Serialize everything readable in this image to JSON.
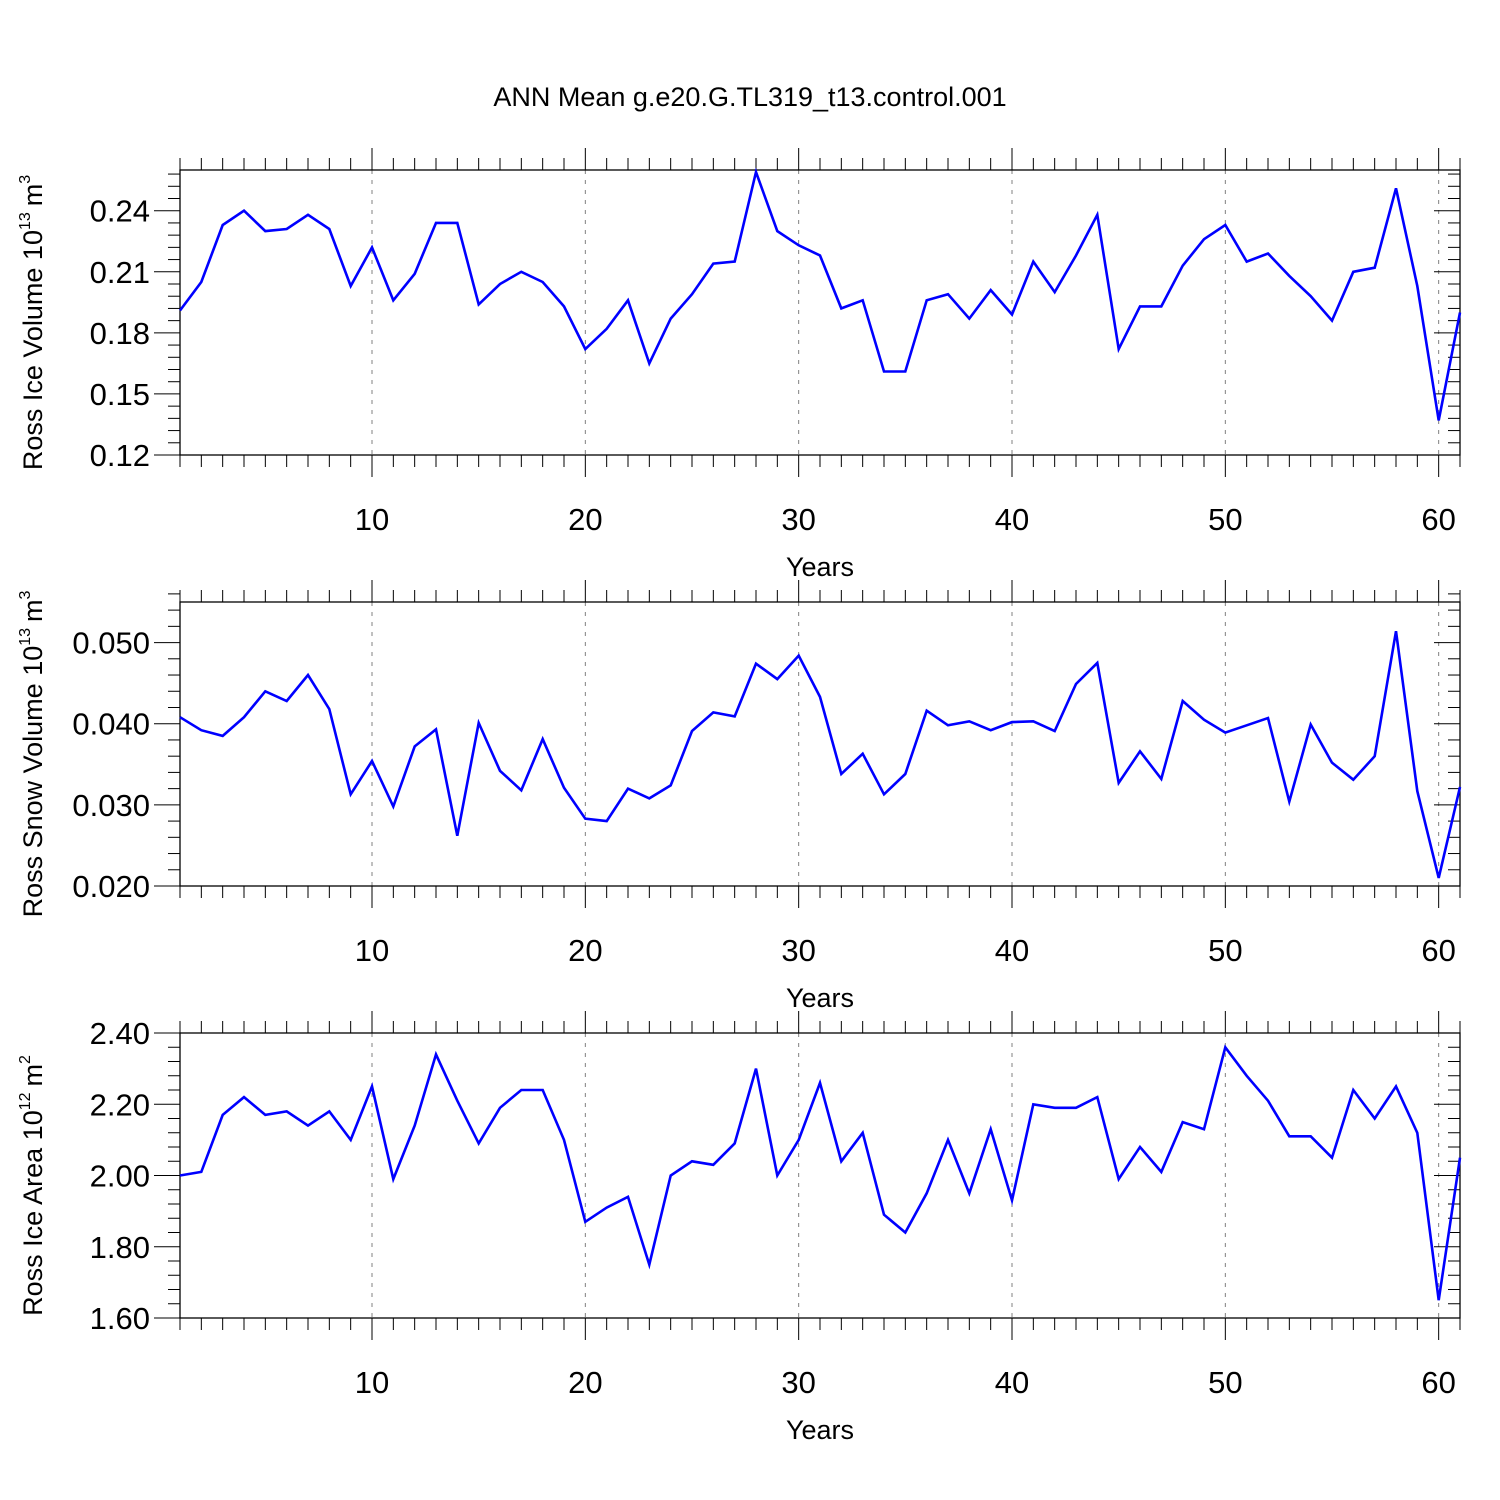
{
  "chart_data": {
    "type": "line",
    "title": "ANN Mean g.e20.G.TL319_t13.control.001",
    "series_color": "#0000ff",
    "gridline_color": "#808080",
    "panels": [
      {
        "name": "ross-ice-volume",
        "ylabel": "Ross Ice Volume 10",
        "ylabel_exp": "13",
        "ylabel_unit": "m",
        "ylabel_unit_exp": "3",
        "xlabel": "Years",
        "xlim": [
          1,
          61
        ],
        "ylim": [
          0.12,
          0.26
        ],
        "yticks": [
          0.12,
          0.15,
          0.18,
          0.21,
          0.24
        ],
        "ytick_labels": [
          "0.12",
          "0.15",
          "0.18",
          "0.21",
          "0.24"
        ],
        "xticks": [
          10,
          20,
          30,
          40,
          50,
          60
        ],
        "xtick_labels": [
          "10",
          "20",
          "30",
          "40",
          "50",
          "60"
        ],
        "x": [
          1,
          2,
          3,
          4,
          5,
          6,
          7,
          8,
          9,
          10,
          11,
          12,
          13,
          14,
          15,
          16,
          17,
          18,
          19,
          20,
          21,
          22,
          23,
          24,
          25,
          26,
          27,
          28,
          29,
          30,
          31,
          32,
          33,
          34,
          35,
          36,
          37,
          38,
          39,
          40,
          41,
          42,
          43,
          44,
          45,
          46,
          47,
          48,
          49,
          50,
          51,
          52,
          53,
          54,
          55,
          56,
          57,
          58,
          59,
          60,
          61
        ],
        "values": [
          0.191,
          0.205,
          0.233,
          0.24,
          0.23,
          0.231,
          0.238,
          0.231,
          0.203,
          0.222,
          0.196,
          0.209,
          0.234,
          0.234,
          0.194,
          0.204,
          0.21,
          0.205,
          0.193,
          0.172,
          0.182,
          0.196,
          0.165,
          0.187,
          0.199,
          0.214,
          0.215,
          0.259,
          0.23,
          0.223,
          0.218,
          0.192,
          0.196,
          0.161,
          0.161,
          0.196,
          0.199,
          0.187,
          0.201,
          0.189,
          0.215,
          0.2,
          0.218,
          0.238,
          0.172,
          0.193,
          0.193,
          0.213,
          0.226,
          0.233,
          0.215,
          0.219,
          0.208,
          0.198,
          0.186,
          0.21,
          0.212,
          0.251,
          0.203,
          0.137,
          0.19
        ]
      },
      {
        "name": "ross-snow-volume",
        "ylabel": "Ross Snow Volume 10",
        "ylabel_exp": "13",
        "ylabel_unit": "m",
        "ylabel_unit_exp": "3",
        "xlabel": "Years",
        "xlim": [
          1,
          61
        ],
        "ylim": [
          0.02,
          0.055
        ],
        "yticks": [
          0.02,
          0.03,
          0.04,
          0.05
        ],
        "ytick_labels": [
          "0.020",
          "0.030",
          "0.040",
          "0.050"
        ],
        "xticks": [
          10,
          20,
          30,
          40,
          50,
          60
        ],
        "xtick_labels": [
          "10",
          "20",
          "30",
          "40",
          "50",
          "60"
        ],
        "x": [
          1,
          2,
          3,
          4,
          5,
          6,
          7,
          8,
          9,
          10,
          11,
          12,
          13,
          14,
          15,
          16,
          17,
          18,
          19,
          20,
          21,
          22,
          23,
          24,
          25,
          26,
          27,
          28,
          29,
          30,
          31,
          32,
          33,
          34,
          35,
          36,
          37,
          38,
          39,
          40,
          41,
          42,
          43,
          44,
          45,
          46,
          47,
          48,
          49,
          50,
          51,
          52,
          53,
          54,
          55,
          56,
          57,
          58,
          59,
          60,
          61
        ],
        "values": [
          0.0408,
          0.0392,
          0.0385,
          0.0408,
          0.044,
          0.0428,
          0.046,
          0.0418,
          0.0313,
          0.0354,
          0.0298,
          0.0372,
          0.0393,
          0.0262,
          0.0401,
          0.0342,
          0.0318,
          0.0381,
          0.0321,
          0.0283,
          0.028,
          0.032,
          0.0308,
          0.0324,
          0.0391,
          0.0414,
          0.0409,
          0.0474,
          0.0455,
          0.0484,
          0.0433,
          0.0338,
          0.0363,
          0.0313,
          0.0338,
          0.0416,
          0.0398,
          0.0403,
          0.0392,
          0.0402,
          0.0403,
          0.0391,
          0.0449,
          0.0475,
          0.0327,
          0.0366,
          0.0332,
          0.0428,
          0.0405,
          0.0389,
          0.0398,
          0.0407,
          0.0304,
          0.0399,
          0.0352,
          0.0331,
          0.036,
          0.0514,
          0.0317,
          0.021,
          0.0322
        ]
      },
      {
        "name": "ross-ice-area",
        "ylabel": "Ross Ice Area 10",
        "ylabel_exp": "12",
        "ylabel_unit": "m",
        "ylabel_unit_exp": "2",
        "xlabel": "Years",
        "xlim": [
          1,
          61
        ],
        "ylim": [
          1.6,
          2.4
        ],
        "yticks": [
          1.6,
          1.8,
          2.0,
          2.2,
          2.4
        ],
        "ytick_labels": [
          "1.60",
          "1.80",
          "2.00",
          "2.20",
          "2.40"
        ],
        "xticks": [
          10,
          20,
          30,
          40,
          50,
          60
        ],
        "xtick_labels": [
          "10",
          "20",
          "30",
          "40",
          "50",
          "60"
        ],
        "x": [
          1,
          2,
          3,
          4,
          5,
          6,
          7,
          8,
          9,
          10,
          11,
          12,
          13,
          14,
          15,
          16,
          17,
          18,
          19,
          20,
          21,
          22,
          23,
          24,
          25,
          26,
          27,
          28,
          29,
          30,
          31,
          32,
          33,
          34,
          35,
          36,
          37,
          38,
          39,
          40,
          41,
          42,
          43,
          44,
          45,
          46,
          47,
          48,
          49,
          50,
          51,
          52,
          53,
          54,
          55,
          56,
          57,
          58,
          59,
          60,
          61
        ],
        "values": [
          2.0,
          2.01,
          2.17,
          2.22,
          2.17,
          2.18,
          2.14,
          2.18,
          2.1,
          2.25,
          1.99,
          2.14,
          2.34,
          2.21,
          2.09,
          2.19,
          2.24,
          2.24,
          2.1,
          1.87,
          1.91,
          1.94,
          1.75,
          2.0,
          2.04,
          2.03,
          2.09,
          2.3,
          2.0,
          2.1,
          2.26,
          2.04,
          2.12,
          1.89,
          1.84,
          1.95,
          2.1,
          1.95,
          2.13,
          1.93,
          2.2,
          2.19,
          2.19,
          2.22,
          1.99,
          2.08,
          2.01,
          2.15,
          2.13,
          2.36,
          2.28,
          2.21,
          2.11,
          2.11,
          2.05,
          2.24,
          2.16,
          2.25,
          2.12,
          1.65,
          2.05
        ]
      }
    ]
  }
}
